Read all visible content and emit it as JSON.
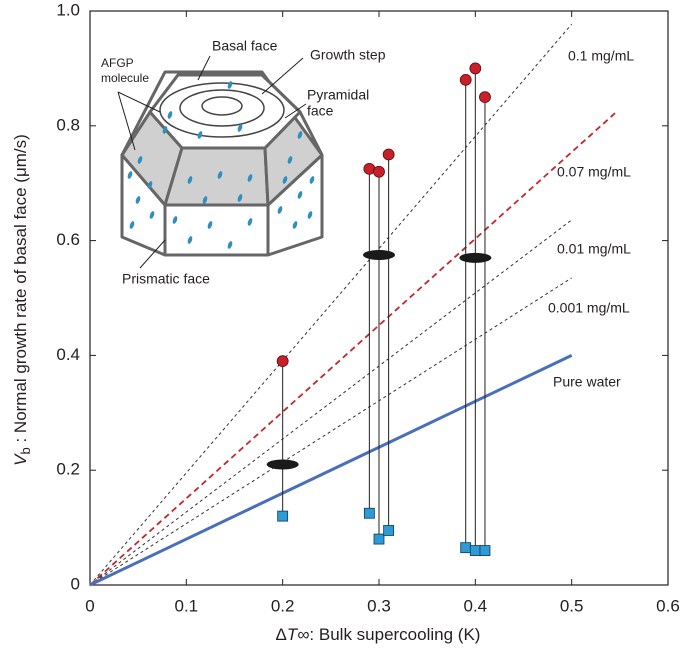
{
  "chart_data": {
    "type": "scatter",
    "x_label": [
      "Δ",
      "T∞",
      ": Bulk supercooling (K)"
    ],
    "y_label": [
      "V",
      "b",
      " : Normal growth rate of basal face (μm/s)"
    ],
    "xlim": [
      0,
      0.6
    ],
    "ylim": [
      0,
      1
    ],
    "xticks": [
      0,
      0.1,
      0.2,
      0.3,
      0.4,
      0.5,
      0.6
    ],
    "yticks": [
      0,
      0.2,
      0.4,
      0.6,
      0.8,
      {
        "value": 1,
        "label": "1.0"
      }
    ],
    "lines": [
      {
        "name": "0.1 mg/mL",
        "color": "#333333",
        "style": "dotted",
        "x": [
          0,
          0.5
        ],
        "values": [
          0,
          0.977
        ]
      },
      {
        "name": "0.07 mg/mL",
        "color": "#c0282d",
        "style": "dashed",
        "x": [
          0,
          0.545
        ],
        "values": [
          0,
          0.822
        ]
      },
      {
        "name": "0.01 mg/mL",
        "color": "#333333",
        "style": "dotted",
        "x": [
          0,
          0.5
        ],
        "values": [
          0,
          0.636
        ]
      },
      {
        "name": "0.001 mg/mL",
        "color": "#333333",
        "style": "dotted",
        "x": [
          0,
          0.5
        ],
        "values": [
          0,
          0.535
        ]
      },
      {
        "name": "Pure water",
        "color": "#4a6fba",
        "style": "solid",
        "x": [
          0,
          0.5
        ],
        "values": [
          0,
          0.4
        ]
      }
    ],
    "ranges": {
      "x": [
        0.2,
        0.29,
        0.3,
        0.31,
        0.39,
        0.4,
        0.41
      ],
      "upper": [
        0.39,
        0.725,
        0.72,
        0.75,
        0.88,
        0.9,
        0.85
      ],
      "lower": [
        0.12,
        0.125,
        0.08,
        0.095,
        0.065,
        0.06,
        0.06
      ],
      "upper_color": "#c8202a",
      "lower_color": "#2e9ad6"
    },
    "averages": {
      "x": [
        0.2,
        0.3,
        0.4
      ],
      "values": [
        0.21,
        0.575,
        0.57
      ],
      "color": "#1a1a1a"
    },
    "annotations": {
      "basal_face": "Basal face",
      "growth_step": "Growth step",
      "afgp": [
        "AFGP",
        "molecule"
      ],
      "pyramidal": [
        "Pyramidal",
        "face"
      ],
      "prismatic_face": "Prismatic face"
    }
  }
}
